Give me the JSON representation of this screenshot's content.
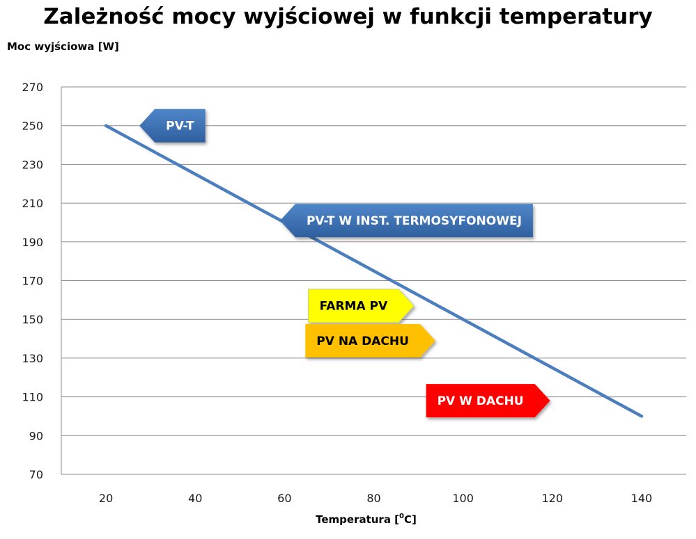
{
  "chart_data": {
    "type": "line",
    "title": "Zależność mocy wyjściowej w funkcji temperatury",
    "ylabel": "Moc wyjściowa [W]",
    "xlabel_prefix": "Temperatura [",
    "xlabel_sup": "0",
    "xlabel_suffix": "C]",
    "xlim": [
      10,
      150
    ],
    "ylim": [
      70,
      270
    ],
    "x_ticks": [
      20,
      40,
      60,
      80,
      100,
      120,
      140
    ],
    "y_ticks": [
      70,
      90,
      110,
      130,
      150,
      170,
      190,
      210,
      230,
      250,
      270
    ],
    "grid": true,
    "series": [
      {
        "x": [
          20,
          140
        ],
        "y": [
          250,
          100
        ],
        "color": "#4a7ebf"
      }
    ],
    "annotations": [
      {
        "text": "PV-T",
        "x": 27.5,
        "y": 250,
        "fill": "#3a6db0",
        "text_color": "#ffffff",
        "pointer": "left"
      },
      {
        "text": "PV-T W INST. TERMOSYFONOWEJ",
        "x": 59,
        "y": 201,
        "fill": "#3a6db0",
        "text_color": "#ffffff",
        "pointer": "left"
      },
      {
        "text": "FARMA PV",
        "x": 89,
        "y": 157,
        "fill": "#ffff00",
        "text_color": "#000000",
        "pointer": "right"
      },
      {
        "text": "PV NA DACHU",
        "x": 93.8,
        "y": 139,
        "fill": "#ffc000",
        "text_color": "#000000",
        "pointer": "right"
      },
      {
        "text": "PV W DACHU",
        "x": 119.5,
        "y": 108,
        "fill": "#ff0000",
        "text_color": "#ffffff",
        "pointer": "right"
      }
    ]
  }
}
